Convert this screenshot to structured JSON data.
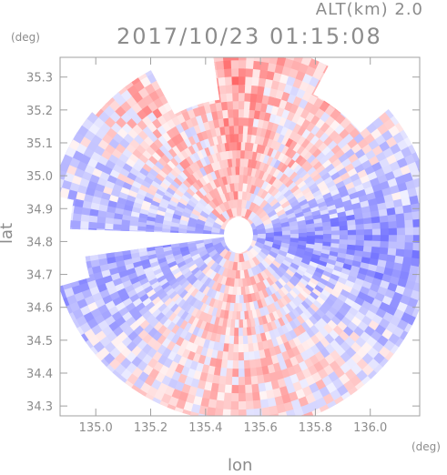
{
  "header": {
    "altitude_label": "ALT(km)  2.0",
    "timestamp": "2017/10/23  01:15:08"
  },
  "axes": {
    "x_label": "lon",
    "y_label": "lat",
    "x_unit": "(deg)",
    "y_unit": "(deg)",
    "x_ticks": [
      "135.0",
      "135.2",
      "135.4",
      "135.6",
      "135.8",
      "136.0"
    ],
    "y_ticks": [
      "35.3",
      "35.2",
      "35.1",
      "35.0",
      "34.9",
      "34.8",
      "34.7",
      "34.6",
      "34.5",
      "34.4",
      "34.3"
    ],
    "x_range": [
      134.87,
      136.18
    ],
    "y_range": [
      34.27,
      35.36
    ]
  },
  "map": {
    "type": "doppler-radar-ppi",
    "center": {
      "lon": 135.52,
      "lat": 34.82
    },
    "colors": {
      "approaching": "#7a7aff",
      "receding": "#ff6a6a",
      "neutral": "#f4f4ff",
      "axis": "#a0a0a0"
    }
  }
}
